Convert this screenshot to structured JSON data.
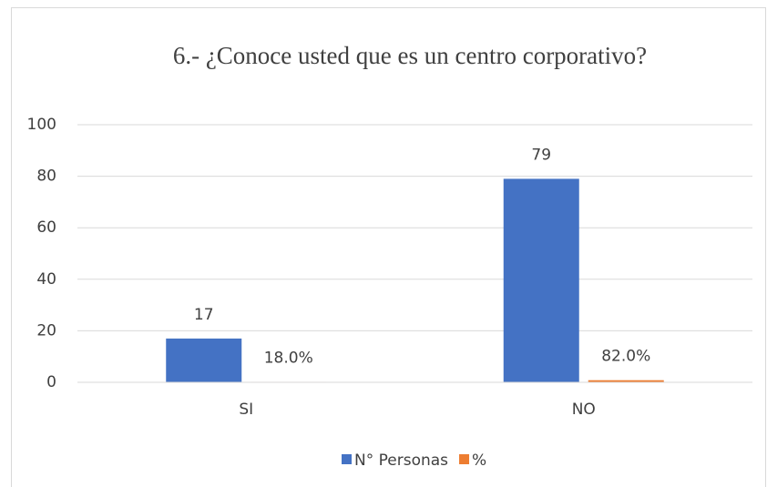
{
  "chart_data": {
    "type": "bar",
    "title": "6.- ¿Conoce usted que es un centro corporativo?",
    "categories": [
      "SI",
      "NO"
    ],
    "series": [
      {
        "name": "N° Personas",
        "color": "#4472c4",
        "values": [
          17,
          79
        ]
      },
      {
        "name": "%",
        "color": "#ed7d31",
        "values": [
          0.18,
          0.82
        ],
        "value_labels": [
          "18.0%",
          "82.0%"
        ]
      }
    ],
    "ylim": [
      0,
      100
    ],
    "yticks": [
      0,
      20,
      40,
      60,
      80,
      100
    ],
    "grid": true,
    "legend": "bottom"
  }
}
